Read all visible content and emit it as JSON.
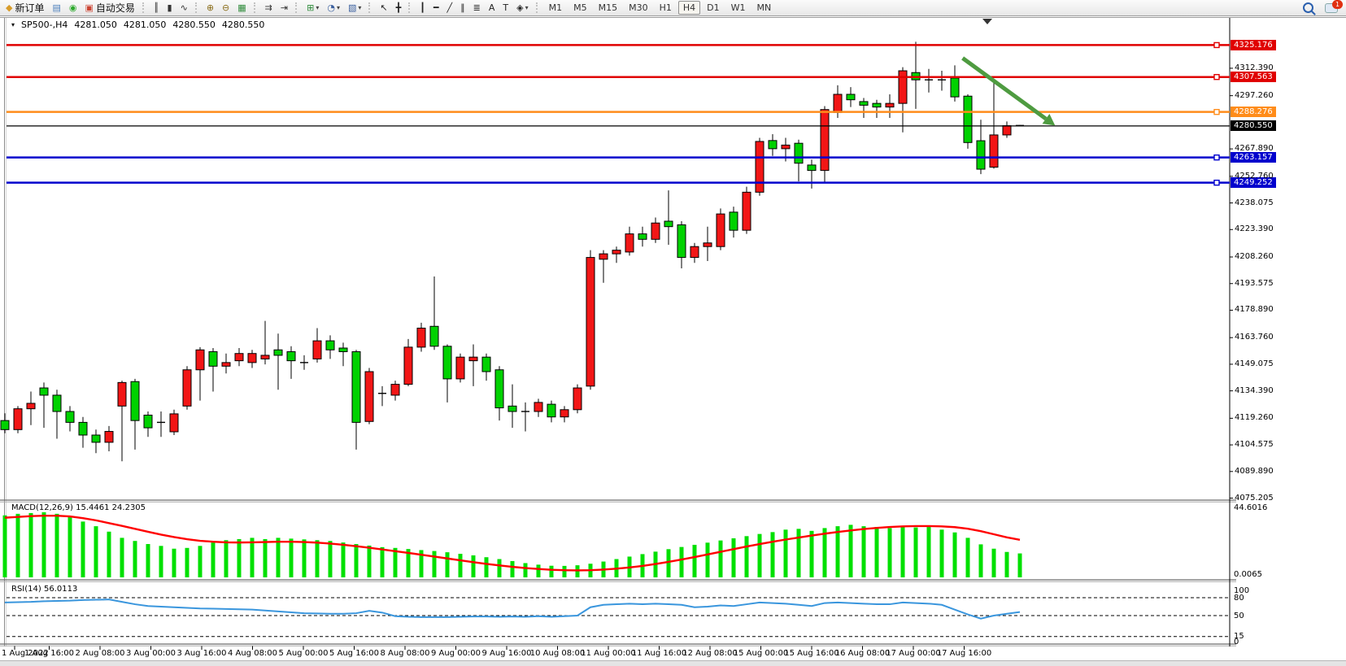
{
  "toolbar": {
    "caret_glyph": "▾",
    "groups": [
      {
        "items": [
          {
            "name": "new-order",
            "glyph": "◆",
            "glyph_color": "#d89c2a",
            "label": "新订单"
          },
          {
            "name": "market-watch",
            "glyph": "▤",
            "glyph_color": "#4a7ebb"
          },
          {
            "name": "signals",
            "glyph": "◉",
            "glyph_color": "#2faa2f"
          },
          {
            "name": "autotrading",
            "glyph": "▣",
            "glyph_color": "#cc4433",
            "label": "自动交易"
          }
        ]
      },
      {
        "items": [
          {
            "name": "bar-chart",
            "glyph": "║",
            "glyph_color": "#333333"
          },
          {
            "name": "candlestick-chart",
            "glyph": "▮",
            "glyph_color": "#333333"
          },
          {
            "name": "line-chart",
            "glyph": "∿",
            "glyph_color": "#333333"
          }
        ]
      },
      {
        "items": [
          {
            "name": "zoom-in",
            "glyph": "⊕",
            "glyph_color": "#8a6d1a"
          },
          {
            "name": "zoom-out",
            "glyph": "⊖",
            "glyph_color": "#8a6d1a"
          },
          {
            "name": "tile-windows",
            "glyph": "▦",
            "glyph_color": "#2e8b3a"
          }
        ]
      },
      {
        "items": [
          {
            "name": "auto-scroll",
            "glyph": "⇉",
            "glyph_color": "#333333"
          },
          {
            "name": "chart-shift",
            "glyph": "⇥",
            "glyph_color": "#333333"
          }
        ]
      },
      {
        "items": [
          {
            "name": "add-indicator",
            "glyph": "⊞",
            "glyph_color": "#2e8b3a",
            "caret": true
          },
          {
            "name": "periods",
            "glyph": "◔",
            "glyph_color": "#3a5f9e",
            "caret": true
          },
          {
            "name": "templates",
            "glyph": "▧",
            "glyph_color": "#3a5f9e",
            "caret": true
          }
        ]
      },
      {
        "items": [
          {
            "name": "cursor",
            "glyph": "↖",
            "glyph_color": "#222222"
          },
          {
            "name": "crosshair",
            "glyph": "╋",
            "glyph_color": "#222222"
          }
        ]
      },
      {
        "items": [
          {
            "name": "vertical-line",
            "glyph": "┃",
            "glyph_color": "#222222"
          },
          {
            "name": "horizontal-line",
            "glyph": "━",
            "glyph_color": "#222222"
          },
          {
            "name": "trendline",
            "glyph": "╱",
            "glyph_color": "#222222"
          },
          {
            "name": "equidistant-channel",
            "glyph": "∥",
            "glyph_color": "#222222"
          },
          {
            "name": "fibonacci",
            "glyph": "≣",
            "glyph_color": "#222222"
          },
          {
            "name": "text",
            "glyph": "A",
            "glyph_color": "#222222"
          },
          {
            "name": "text-label",
            "glyph": "T",
            "glyph_color": "#222222"
          },
          {
            "name": "arrows",
            "glyph": "◈",
            "glyph_color": "#222222",
            "caret": true
          }
        ]
      }
    ],
    "timeframes": {
      "items": [
        "M1",
        "M5",
        "M15",
        "M30",
        "H1",
        "H4",
        "D1",
        "W1",
        "MN"
      ],
      "active": "H4"
    },
    "chat_badge": "1"
  },
  "quote_bar": {
    "dropdown_glyph": "▾",
    "symbol": "SP500-,H4",
    "values": [
      "4281.050",
      "4281.050",
      "4280.550",
      "4280.550"
    ]
  },
  "colors": {
    "candle_up": "#f21616",
    "candle_down": "#00d200",
    "candle_outline": "#000000",
    "macd_histogram": "#00e000",
    "macd_signal": "#ff0000",
    "rsi_line": "#3a96dd",
    "arrow": "#4e9b40",
    "axis_text": "#000000"
  },
  "chart_data": {
    "type": "candlestick",
    "symbol": "SP500-",
    "timeframe": "H4",
    "price_axis": {
      "top": 4333.0,
      "bottom": 4075.0
    },
    "y_ticks": [
      4312.39,
      4297.26,
      4267.89,
      4252.76,
      4238.075,
      4223.39,
      4208.26,
      4193.575,
      4178.89,
      4163.76,
      4149.075,
      4134.39,
      4119.26,
      4104.575,
      4089.89,
      4075.205
    ],
    "x_labels": [
      "1 Aug 2022",
      "1 Aug 16:00",
      "2 Aug 08:00",
      "3 Aug 00:00",
      "3 Aug 16:00",
      "4 Aug 08:00",
      "5 Aug 00:00",
      "5 Aug 16:00",
      "8 Aug 08:00",
      "9 Aug 00:00",
      "9 Aug 16:00",
      "10 Aug 08:00",
      "11 Aug 00:00",
      "11 Aug 16:00",
      "12 Aug 08:00",
      "15 Aug 00:00",
      "15 Aug 16:00",
      "16 Aug 08:00",
      "17 Aug 00:00",
      "17 Aug 16:00"
    ],
    "candles": [
      [
        4118,
        4122,
        4111,
        4113
      ],
      [
        4113,
        4126,
        4111,
        4124.5
      ],
      [
        4124.5,
        4134,
        4115.5,
        4127.5
      ],
      [
        4136,
        4139,
        4114,
        4132
      ],
      [
        4132,
        4135,
        4108,
        4123
      ],
      [
        4123,
        4126,
        4112,
        4117
      ],
      [
        4117,
        4120,
        4103,
        4110
      ],
      [
        4110,
        4113,
        4100,
        4106
      ],
      [
        4106,
        4115,
        4101,
        4112
      ],
      [
        4126,
        4140,
        4095.5,
        4139
      ],
      [
        4139.5,
        4141,
        4102,
        4118
      ],
      [
        4121,
        4123,
        4109,
        4114
      ],
      [
        4117,
        4123,
        4109,
        4117
      ],
      [
        4111.8,
        4124,
        4110,
        4121.7
      ],
      [
        4126,
        4148,
        4124,
        4146
      ],
      [
        4146,
        4158.5,
        4129,
        4157
      ],
      [
        4156,
        4158,
        4134,
        4148
      ],
      [
        4148,
        4155,
        4144,
        4150
      ],
      [
        4151,
        4158,
        4148,
        4155
      ],
      [
        4150,
        4157,
        4147,
        4155
      ],
      [
        4152,
        4173,
        4149,
        4154
      ],
      [
        4157,
        4166,
        4135,
        4154
      ],
      [
        4156,
        4159,
        4141,
        4151
      ],
      [
        4150,
        4154,
        4146,
        4150
      ],
      [
        4152,
        4169,
        4150,
        4162
      ],
      [
        4162,
        4165,
        4152,
        4157
      ],
      [
        4158,
        4161,
        4148,
        4156
      ],
      [
        4156,
        4157,
        4102,
        4117
      ],
      [
        4117.5,
        4147,
        4116,
        4145
      ],
      [
        4133,
        4137,
        4126,
        4133
      ],
      [
        4132,
        4140,
        4129,
        4138
      ],
      [
        4138,
        4163,
        4137,
        4158.5
      ],
      [
        4158.5,
        4172,
        4156,
        4169
      ],
      [
        4170,
        4197.5,
        4157,
        4159
      ],
      [
        4159,
        4160,
        4128,
        4141
      ],
      [
        4141,
        4155,
        4139,
        4153
      ],
      [
        4151,
        4160,
        4137,
        4153
      ],
      [
        4153,
        4155,
        4140,
        4145
      ],
      [
        4146,
        4148,
        4118,
        4125
      ],
      [
        4126,
        4138,
        4114,
        4123
      ],
      [
        4123,
        4128,
        4112,
        4123
      ],
      [
        4123,
        4130,
        4120,
        4128
      ],
      [
        4127,
        4129,
        4117,
        4120
      ],
      [
        4120,
        4126,
        4117,
        4124
      ],
      [
        4124,
        4138,
        4122,
        4136
      ],
      [
        4137,
        4212,
        4135,
        4208
      ],
      [
        4207,
        4212,
        4194,
        4210
      ],
      [
        4210,
        4214,
        4205,
        4212
      ],
      [
        4211,
        4225,
        4209,
        4221
      ],
      [
        4221,
        4225,
        4214,
        4218
      ],
      [
        4218,
        4230,
        4216,
        4227
      ],
      [
        4228,
        4245,
        4215,
        4225
      ],
      [
        4226,
        4228,
        4202,
        4208
      ],
      [
        4208,
        4216,
        4205,
        4214
      ],
      [
        4214,
        4225,
        4206,
        4216
      ],
      [
        4214,
        4235,
        4212,
        4232
      ],
      [
        4233,
        4236,
        4219,
        4223
      ],
      [
        4223,
        4247,
        4221,
        4244
      ],
      [
        4244,
        4274,
        4242,
        4272
      ],
      [
        4272.5,
        4276,
        4264,
        4268
      ],
      [
        4268,
        4274,
        4261,
        4270
      ],
      [
        4271,
        4273,
        4250,
        4260
      ],
      [
        4259,
        4262,
        4246,
        4256
      ],
      [
        4256,
        4291.5,
        4249,
        4289.6
      ],
      [
        4288,
        4303,
        4285,
        4298
      ],
      [
        4298,
        4302,
        4291,
        4295
      ],
      [
        4294,
        4296,
        4285,
        4292
      ],
      [
        4293,
        4295,
        4285,
        4291
      ],
      [
        4291,
        4298,
        4285,
        4293
      ],
      [
        4293,
        4313,
        4277,
        4311
      ],
      [
        4310,
        4327,
        4290,
        4306
      ],
      [
        4306,
        4312,
        4299,
        4306
      ],
      [
        4306,
        4311,
        4300,
        4306
      ],
      [
        4307,
        4314,
        4294,
        4296.6
      ],
      [
        4297,
        4298,
        4268,
        4271.4
      ],
      [
        4272.4,
        4284,
        4254,
        4256.7
      ],
      [
        4257.8,
        4304.4,
        4257,
        4275.6
      ],
      [
        4275.6,
        4283,
        4274,
        4280.7
      ],
      [
        4281.05,
        4281.05,
        4280.55,
        4280.55
      ]
    ],
    "levels": [
      {
        "price": 4325.176,
        "label": "4325.176",
        "color": "#e00000",
        "width": 2.5,
        "square": true
      },
      {
        "price": 4307.563,
        "label": "4307.563",
        "color": "#e00000",
        "width": 2.5,
        "square": true
      },
      {
        "price": 4288.276,
        "label": "4288.276",
        "color": "#ff8c1a",
        "width": 2.5,
        "square": true
      },
      {
        "price": 4280.55,
        "label": "4280.550",
        "color": "#000000",
        "width": 1.2,
        "square": false,
        "current": true
      },
      {
        "price": 4263.157,
        "label": "4263.157",
        "color": "#0000cd",
        "width": 2.5,
        "square": true
      },
      {
        "price": 4249.252,
        "label": "4249.252",
        "color": "#0000cd",
        "width": 2.5,
        "square": true
      }
    ],
    "annotation_arrow": {
      "from": {
        "bar": 73.6,
        "price": 4318.0
      },
      "to": {
        "bar": 80.0,
        "price": 4284.5
      }
    },
    "indicators": [
      {
        "name": "MACD",
        "title": "MACD(12,26,9)",
        "values_text": "15.4461 24.2305",
        "main_value": 15.4461,
        "signal_value": 24.2305,
        "axis_top_label": "44.6016",
        "axis_bottom_label": "0.0065",
        "axis_top_value": 44.6016,
        "histogram": [
          40,
          41,
          41.5,
          42,
          41,
          39,
          36,
          33,
          29.5,
          25.5,
          23.5,
          21.5,
          20.3,
          18.5,
          19,
          20.3,
          22.5,
          24,
          24.7,
          25.5,
          24.7,
          25.5,
          25,
          24.5,
          24,
          23.5,
          22.5,
          21.5,
          20.5,
          19.5,
          19,
          18.3,
          17.6,
          17,
          16.2,
          15.2,
          14.2,
          13,
          11.8,
          10.5,
          9.2,
          8.2,
          7.5,
          7.4,
          7.8,
          8.8,
          10.2,
          11.8,
          13.4,
          15,
          16.6,
          18.2,
          19.6,
          21,
          22.4,
          23.8,
          25.2,
          26.6,
          28,
          29.2,
          30.8,
          31.3,
          30,
          31.8,
          33,
          33.9,
          33,
          32.5,
          31.8,
          32.5,
          32.2,
          32.5,
          30.8,
          29,
          25.5,
          21.3,
          18.5,
          16.4,
          15.45
        ],
        "signal": [
          38.5,
          39,
          39.5,
          39.8,
          39.8,
          39.3,
          38.2,
          36.8,
          35,
          33.2,
          31.3,
          29.4,
          27.6,
          26,
          24.6,
          23.6,
          23,
          22.6,
          22.5,
          22.6,
          22.8,
          23,
          23,
          22.8,
          22.4,
          21.8,
          21,
          20.1,
          19.1,
          18,
          16.9,
          15.8,
          14.6,
          13.4,
          12.2,
          11,
          9.8,
          8.7,
          7.7,
          6.8,
          6,
          5.4,
          4.9,
          4.6,
          4.5,
          4.6,
          5,
          5.6,
          6.4,
          7.4,
          8.6,
          10,
          11.5,
          13.1,
          14.8,
          16.5,
          18.2,
          19.9,
          21.5,
          23,
          24.4,
          25.7,
          27,
          28.2,
          29.3,
          30.3,
          31.2,
          31.9,
          32.5,
          32.9,
          33.1,
          33.1,
          32.9,
          32.4,
          31.4,
          29.8,
          27.8,
          25.8,
          24.23
        ]
      },
      {
        "name": "RSI",
        "title": "RSI(14)",
        "values_text": "56.0113",
        "value": 56.0113,
        "levels": [
          80,
          50,
          15
        ],
        "axis_labels": [
          "100",
          "80",
          "50",
          "15",
          "0"
        ],
        "values": [
          72,
          72.5,
          73,
          74,
          74.5,
          75,
          76,
          76.5,
          77,
          73,
          69,
          66,
          65,
          64,
          63,
          62,
          61.5,
          61,
          60.5,
          60,
          58.5,
          57,
          55.5,
          54,
          53.5,
          53,
          53,
          54,
          58,
          55,
          49,
          48,
          47.5,
          47.5,
          47.5,
          48,
          48.5,
          48.5,
          48,
          48.5,
          48,
          49,
          48,
          49,
          50,
          64,
          68,
          69,
          70,
          69,
          70,
          69,
          68,
          64,
          65,
          67,
          66,
          69,
          72,
          71,
          70,
          68,
          66,
          71,
          72,
          71,
          70,
          69,
          69,
          72,
          71,
          70,
          68,
          60,
          52,
          45,
          50,
          53,
          56.01
        ]
      }
    ]
  }
}
